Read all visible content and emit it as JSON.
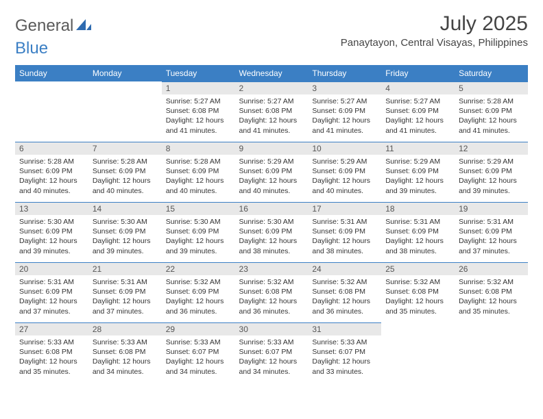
{
  "logo": {
    "part1": "General",
    "part2": "Blue"
  },
  "header": {
    "month_title": "July 2025",
    "location": "Panaytayon, Central Visayas, Philippines"
  },
  "colors": {
    "header_blue": "#3b7fc4",
    "daynum_bg": "#e8e8e8",
    "logo_gray": "#5a5a5a",
    "text": "#333333"
  },
  "weekdays": [
    "Sunday",
    "Monday",
    "Tuesday",
    "Wednesday",
    "Thursday",
    "Friday",
    "Saturday"
  ],
  "blank_start": 2,
  "days": [
    {
      "n": 1,
      "sunrise": "5:27 AM",
      "sunset": "6:08 PM",
      "daylight": "12 hours and 41 minutes."
    },
    {
      "n": 2,
      "sunrise": "5:27 AM",
      "sunset": "6:08 PM",
      "daylight": "12 hours and 41 minutes."
    },
    {
      "n": 3,
      "sunrise": "5:27 AM",
      "sunset": "6:09 PM",
      "daylight": "12 hours and 41 minutes."
    },
    {
      "n": 4,
      "sunrise": "5:27 AM",
      "sunset": "6:09 PM",
      "daylight": "12 hours and 41 minutes."
    },
    {
      "n": 5,
      "sunrise": "5:28 AM",
      "sunset": "6:09 PM",
      "daylight": "12 hours and 41 minutes."
    },
    {
      "n": 6,
      "sunrise": "5:28 AM",
      "sunset": "6:09 PM",
      "daylight": "12 hours and 40 minutes."
    },
    {
      "n": 7,
      "sunrise": "5:28 AM",
      "sunset": "6:09 PM",
      "daylight": "12 hours and 40 minutes."
    },
    {
      "n": 8,
      "sunrise": "5:28 AM",
      "sunset": "6:09 PM",
      "daylight": "12 hours and 40 minutes."
    },
    {
      "n": 9,
      "sunrise": "5:29 AM",
      "sunset": "6:09 PM",
      "daylight": "12 hours and 40 minutes."
    },
    {
      "n": 10,
      "sunrise": "5:29 AM",
      "sunset": "6:09 PM",
      "daylight": "12 hours and 40 minutes."
    },
    {
      "n": 11,
      "sunrise": "5:29 AM",
      "sunset": "6:09 PM",
      "daylight": "12 hours and 39 minutes."
    },
    {
      "n": 12,
      "sunrise": "5:29 AM",
      "sunset": "6:09 PM",
      "daylight": "12 hours and 39 minutes."
    },
    {
      "n": 13,
      "sunrise": "5:30 AM",
      "sunset": "6:09 PM",
      "daylight": "12 hours and 39 minutes."
    },
    {
      "n": 14,
      "sunrise": "5:30 AM",
      "sunset": "6:09 PM",
      "daylight": "12 hours and 39 minutes."
    },
    {
      "n": 15,
      "sunrise": "5:30 AM",
      "sunset": "6:09 PM",
      "daylight": "12 hours and 39 minutes."
    },
    {
      "n": 16,
      "sunrise": "5:30 AM",
      "sunset": "6:09 PM",
      "daylight": "12 hours and 38 minutes."
    },
    {
      "n": 17,
      "sunrise": "5:31 AM",
      "sunset": "6:09 PM",
      "daylight": "12 hours and 38 minutes."
    },
    {
      "n": 18,
      "sunrise": "5:31 AM",
      "sunset": "6:09 PM",
      "daylight": "12 hours and 38 minutes."
    },
    {
      "n": 19,
      "sunrise": "5:31 AM",
      "sunset": "6:09 PM",
      "daylight": "12 hours and 37 minutes."
    },
    {
      "n": 20,
      "sunrise": "5:31 AM",
      "sunset": "6:09 PM",
      "daylight": "12 hours and 37 minutes."
    },
    {
      "n": 21,
      "sunrise": "5:31 AM",
      "sunset": "6:09 PM",
      "daylight": "12 hours and 37 minutes."
    },
    {
      "n": 22,
      "sunrise": "5:32 AM",
      "sunset": "6:09 PM",
      "daylight": "12 hours and 36 minutes."
    },
    {
      "n": 23,
      "sunrise": "5:32 AM",
      "sunset": "6:08 PM",
      "daylight": "12 hours and 36 minutes."
    },
    {
      "n": 24,
      "sunrise": "5:32 AM",
      "sunset": "6:08 PM",
      "daylight": "12 hours and 36 minutes."
    },
    {
      "n": 25,
      "sunrise": "5:32 AM",
      "sunset": "6:08 PM",
      "daylight": "12 hours and 35 minutes."
    },
    {
      "n": 26,
      "sunrise": "5:32 AM",
      "sunset": "6:08 PM",
      "daylight": "12 hours and 35 minutes."
    },
    {
      "n": 27,
      "sunrise": "5:33 AM",
      "sunset": "6:08 PM",
      "daylight": "12 hours and 35 minutes."
    },
    {
      "n": 28,
      "sunrise": "5:33 AM",
      "sunset": "6:08 PM",
      "daylight": "12 hours and 34 minutes."
    },
    {
      "n": 29,
      "sunrise": "5:33 AM",
      "sunset": "6:07 PM",
      "daylight": "12 hours and 34 minutes."
    },
    {
      "n": 30,
      "sunrise": "5:33 AM",
      "sunset": "6:07 PM",
      "daylight": "12 hours and 34 minutes."
    },
    {
      "n": 31,
      "sunrise": "5:33 AM",
      "sunset": "6:07 PM",
      "daylight": "12 hours and 33 minutes."
    }
  ],
  "labels": {
    "sunrise": "Sunrise:",
    "sunset": "Sunset:",
    "daylight": "Daylight:"
  }
}
